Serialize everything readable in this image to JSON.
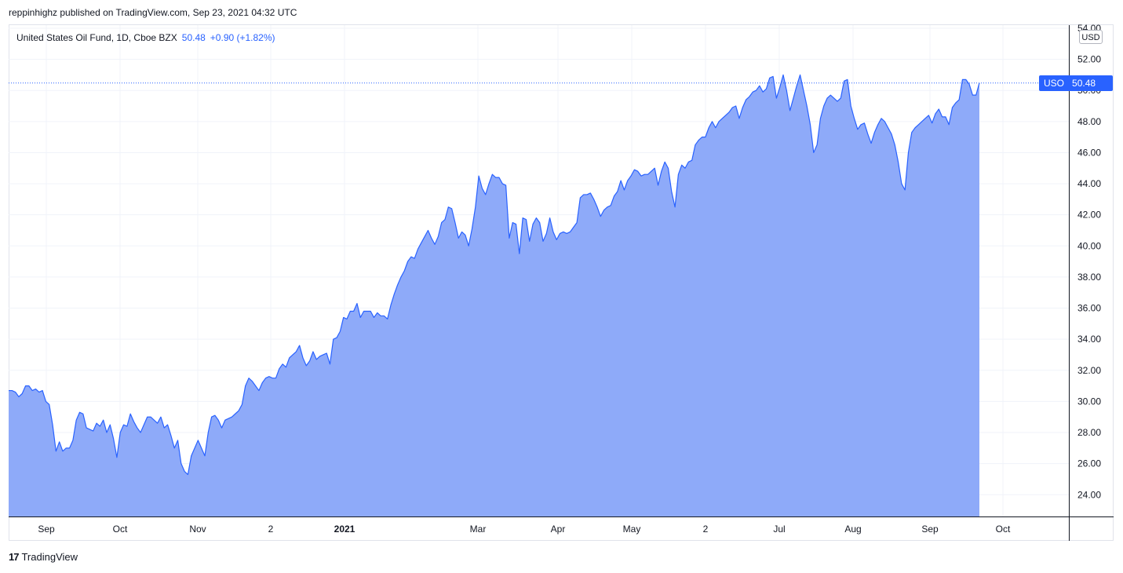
{
  "header": {
    "publish_text": "reppinhighz published on TradingView.com, Sep 23, 2021 04:32 UTC"
  },
  "legend": {
    "instrument": "United States Oil Fund, 1D, Cboe BZX",
    "price": "50.48",
    "change": "+0.90 (+1.82%)"
  },
  "price_scale": {
    "currency": "USD",
    "last_symbol": "USO",
    "last_value": "50.48"
  },
  "footer": {
    "logo_mark": "17",
    "brand": "TradingView"
  },
  "colors": {
    "line": "#2962ff",
    "fill": "#8eaaf9",
    "grid": "#f0f3fa",
    "accent": "#2962ff"
  },
  "chart_data": {
    "type": "area",
    "ylim": [
      22.6,
      54.2
    ],
    "yticks": [
      "24.00",
      "26.00",
      "28.00",
      "30.00",
      "32.00",
      "34.00",
      "36.00",
      "38.00",
      "40.00",
      "42.00",
      "44.00",
      "46.00",
      "48.00",
      "50.00",
      "52.00",
      "54.00"
    ],
    "xticks": [
      {
        "label": "Sep",
        "bold": false
      },
      {
        "label": "Oct",
        "bold": false
      },
      {
        "label": "Nov",
        "bold": false
      },
      {
        "label": "2",
        "bold": false
      },
      {
        "label": "2021",
        "bold": true
      },
      {
        "label": "Mar",
        "bold": false
      },
      {
        "label": "Apr",
        "bold": false
      },
      {
        "label": "May",
        "bold": false
      },
      {
        "label": "2",
        "bold": false
      },
      {
        "label": "Jul",
        "bold": false
      },
      {
        "label": "Aug",
        "bold": false
      },
      {
        "label": "Sep",
        "bold": false
      },
      {
        "label": "Oct",
        "bold": false
      }
    ],
    "last_value": 50.48,
    "series": [
      {
        "values": [
          30.7,
          30.7,
          30.6,
          30.3,
          30.5,
          31.0,
          31.0,
          30.7,
          30.8,
          30.6,
          30.7,
          30.0,
          29.8,
          28.5,
          26.8,
          27.4,
          26.8,
          27.0,
          27.0,
          27.5,
          28.8,
          29.3,
          29.2,
          28.3,
          28.2,
          28.1,
          28.6,
          28.4,
          28.8,
          28.0,
          28.5,
          27.6,
          26.4,
          28.0,
          28.5,
          28.4,
          29.2,
          28.7,
          28.3,
          28.0,
          28.5,
          29.0,
          29.0,
          28.8,
          28.6,
          29.0,
          28.3,
          28.5,
          27.8,
          27.0,
          27.5,
          26.0,
          25.5,
          25.3,
          26.5,
          27.0,
          27.5,
          27.0,
          26.5,
          28.0,
          29.0,
          29.1,
          28.8,
          28.3,
          28.8,
          28.9,
          29.0,
          29.2,
          29.4,
          29.8,
          31.0,
          31.5,
          31.3,
          31.0,
          30.7,
          31.2,
          31.5,
          31.6,
          31.5,
          31.5,
          32.1,
          32.4,
          32.2,
          32.8,
          33.0,
          33.2,
          33.6,
          32.8,
          32.3,
          32.6,
          33.2,
          32.7,
          32.9,
          33.0,
          33.1,
          32.4,
          34.0,
          34.1,
          34.5,
          35.4,
          35.3,
          35.8,
          35.8,
          36.3,
          35.4,
          35.8,
          35.8,
          35.8,
          35.4,
          35.7,
          35.5,
          35.5,
          35.3,
          36.2,
          36.9,
          37.5,
          38.0,
          38.4,
          39.0,
          39.3,
          39.2,
          39.8,
          40.2,
          40.6,
          41.0,
          40.5,
          40.1,
          40.6,
          41.5,
          41.7,
          42.5,
          42.4,
          41.5,
          40.5,
          40.9,
          40.7,
          40.0,
          41.1,
          42.5,
          44.5,
          43.7,
          43.3,
          44.0,
          44.6,
          44.4,
          44.4,
          44.0,
          43.9,
          40.5,
          41.5,
          41.4,
          39.5,
          41.8,
          41.7,
          40.3,
          41.4,
          41.8,
          41.5,
          40.3,
          40.8,
          41.8,
          40.9,
          40.4,
          40.8,
          40.9,
          40.8,
          40.9,
          41.2,
          41.5,
          43.1,
          43.3,
          43.3,
          43.4,
          43.0,
          42.5,
          41.9,
          42.3,
          42.5,
          42.6,
          43.2,
          43.5,
          44.2,
          43.6,
          44.2,
          44.5,
          44.9,
          44.8,
          44.5,
          44.6,
          44.6,
          44.8,
          45.0,
          43.9,
          44.8,
          45.4,
          45.0,
          43.5,
          42.5,
          44.6,
          45.2,
          45.0,
          45.4,
          45.5,
          46.5,
          46.8,
          47.0,
          47.0,
          47.6,
          48.0,
          47.6,
          48.0,
          48.2,
          48.4,
          48.6,
          48.9,
          49.0,
          48.2,
          48.9,
          49.4,
          49.6,
          49.9,
          50.0,
          50.3,
          49.9,
          50.1,
          50.8,
          50.9,
          49.5,
          50.2,
          51.0,
          50.0,
          48.7,
          49.5,
          50.3,
          51.0,
          50.0,
          49.0,
          47.8,
          46.0,
          46.5,
          48.2,
          49.0,
          49.5,
          49.7,
          49.5,
          49.3,
          49.5,
          50.6,
          50.7,
          49.0,
          48.2,
          47.5,
          47.8,
          47.9,
          47.2,
          46.6,
          47.3,
          47.8,
          48.2,
          48.0,
          47.6,
          47.2,
          46.5,
          45.4,
          44.0,
          43.6,
          46.0,
          47.3,
          47.6,
          47.8,
          48.0,
          48.2,
          48.4,
          47.9,
          48.5,
          48.8,
          48.3,
          48.3,
          47.8,
          48.9,
          49.2,
          49.4,
          50.7,
          50.7,
          50.4,
          49.7,
          49.7,
          50.48
        ]
      }
    ]
  }
}
